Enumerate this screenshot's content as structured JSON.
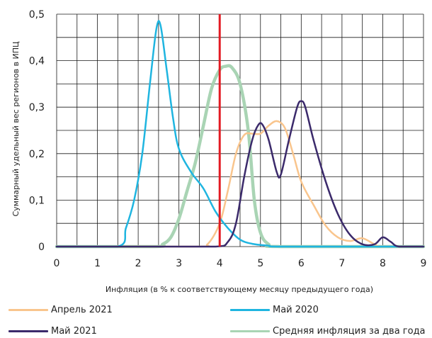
{
  "chart_data": {
    "type": "line",
    "xlabel": "Инфляция (в % к соответствующему месяцу предыдущего года)",
    "ylabel": "Суммарный удельный вес регионов в ИПЦ",
    "xlim": [
      0,
      9
    ],
    "ylim": [
      0,
      0.5
    ],
    "x_ticks": [
      "0",
      "1",
      "2",
      "3",
      "4",
      "5",
      "6",
      "7",
      "8",
      "9"
    ],
    "y_ticks": [
      "0",
      "0,1",
      "0,2",
      "0,3",
      "0,4",
      "0,5"
    ],
    "grid": true,
    "legend_position": "bottom",
    "reference_line": {
      "x": 4,
      "color": "#e31b23"
    },
    "series": [
      {
        "name": "Апрель 2021",
        "color": "#f9c58d",
        "x": [
          0,
          3.4,
          3.7,
          4.0,
          4.2,
          4.4,
          4.6,
          4.8,
          5.0,
          5.2,
          5.4,
          5.6,
          5.8,
          6.0,
          6.3,
          6.6,
          6.9,
          7.2,
          7.5,
          7.8,
          8.0,
          9.0
        ],
        "y": [
          0,
          0,
          0.005,
          0.05,
          0.12,
          0.2,
          0.24,
          0.243,
          0.243,
          0.26,
          0.27,
          0.255,
          0.2,
          0.14,
          0.09,
          0.045,
          0.02,
          0.012,
          0.018,
          0.005,
          0,
          0
        ]
      },
      {
        "name": "Май 2020",
        "color": "#1fb5e0",
        "x": [
          0,
          1.5,
          1.7,
          1.9,
          2.1,
          2.3,
          2.45,
          2.55,
          2.7,
          2.85,
          3.0,
          3.3,
          3.6,
          3.9,
          4.2,
          4.5,
          4.8,
          5.2,
          5.6,
          9.0
        ],
        "y": [
          0,
          0,
          0.04,
          0.1,
          0.2,
          0.36,
          0.47,
          0.475,
          0.38,
          0.28,
          0.21,
          0.16,
          0.125,
          0.075,
          0.04,
          0.015,
          0.006,
          0.002,
          0,
          0
        ]
      },
      {
        "name": "Май 2021",
        "color": "#3b2a6b",
        "x": [
          0,
          2.5,
          3.9,
          4.2,
          4.4,
          4.6,
          4.8,
          4.95,
          5.05,
          5.2,
          5.4,
          5.5,
          5.7,
          5.9,
          6.0,
          6.1,
          6.3,
          6.6,
          6.9,
          7.2,
          7.5,
          7.8,
          8.0,
          8.2,
          8.4,
          9.0
        ],
        "y": [
          0,
          0,
          0,
          0.01,
          0.05,
          0.15,
          0.23,
          0.262,
          0.262,
          0.23,
          0.16,
          0.155,
          0.23,
          0.3,
          0.313,
          0.3,
          0.23,
          0.14,
          0.07,
          0.025,
          0.005,
          0.005,
          0.02,
          0.01,
          0,
          0
        ]
      },
      {
        "name": "Средняя инфляция за два года",
        "color": "#a9d4b4",
        "x": [
          0,
          2.4,
          2.6,
          2.8,
          3.0,
          3.2,
          3.4,
          3.6,
          3.8,
          4.0,
          4.15,
          4.3,
          4.5,
          4.7,
          4.85,
          5.0,
          5.2,
          5.5,
          9.0
        ],
        "y": [
          0,
          0,
          0.005,
          0.02,
          0.06,
          0.12,
          0.18,
          0.26,
          0.34,
          0.38,
          0.388,
          0.385,
          0.35,
          0.25,
          0.1,
          0.03,
          0.005,
          0,
          0
        ]
      }
    ]
  }
}
